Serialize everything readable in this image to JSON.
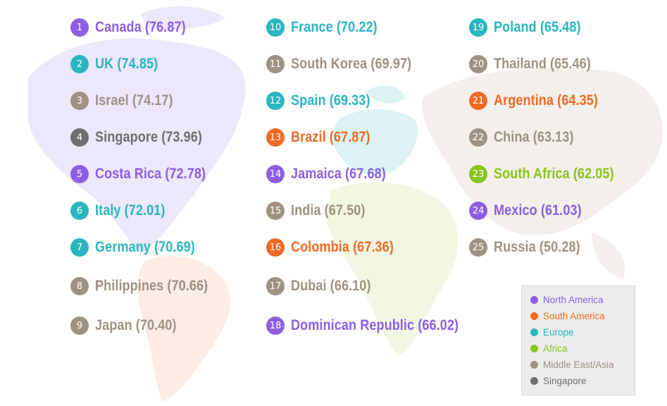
{
  "colors": {
    "north_america": "#8b5fe0",
    "south_america": "#f06a24",
    "europe": "#2bb5bf",
    "africa": "#8ac41c",
    "middle_east_asia": "#9e9283",
    "singapore": "#6f6f6f"
  },
  "legend": [
    {
      "label": "North America",
      "region": "north_america"
    },
    {
      "label": "South America",
      "region": "south_america"
    },
    {
      "label": "Europe",
      "region": "europe"
    },
    {
      "label": "Africa",
      "region": "africa"
    },
    {
      "label": "Middle East/Asia",
      "region": "middle_east_asia"
    },
    {
      "label": "Singapore",
      "region": "singapore"
    }
  ],
  "chart_data": {
    "type": "table",
    "legend_placement": "bottom-right",
    "entries": [
      {
        "rank": "1",
        "country": "Canada",
        "score": "76.87",
        "region": "north_america"
      },
      {
        "rank": "2",
        "country": "UK",
        "score": "74.85",
        "region": "europe"
      },
      {
        "rank": "3",
        "country": "Israel",
        "score": "74.17",
        "region": "middle_east_asia"
      },
      {
        "rank": "4",
        "country": "Singapore",
        "score": "73.96",
        "region": "singapore"
      },
      {
        "rank": "5",
        "country": "Costa Rica",
        "score": "72.78",
        "region": "north_america"
      },
      {
        "rank": "6",
        "country": "Italy",
        "score": "72.01",
        "region": "europe"
      },
      {
        "rank": "7",
        "country": "Germany",
        "score": "70.69",
        "region": "europe"
      },
      {
        "rank": "8",
        "country": "Philippines",
        "score": "70.66",
        "region": "middle_east_asia"
      },
      {
        "rank": "9",
        "country": "Japan",
        "score": "70.40",
        "region": "middle_east_asia"
      },
      {
        "rank": "10",
        "country": "France",
        "score": "70.22",
        "region": "europe"
      },
      {
        "rank": "11",
        "country": "South Korea",
        "score": "69.97",
        "region": "middle_east_asia"
      },
      {
        "rank": "12",
        "country": "Spain",
        "score": "69.33",
        "region": "europe"
      },
      {
        "rank": "13",
        "country": "Brazil",
        "score": "67.87",
        "region": "south_america"
      },
      {
        "rank": "14",
        "country": "Jamaica",
        "score": "67.68",
        "region": "north_america"
      },
      {
        "rank": "15",
        "country": "India",
        "score": "67.50",
        "region": "middle_east_asia"
      },
      {
        "rank": "16",
        "country": "Colombia",
        "score": "67.36",
        "region": "south_america"
      },
      {
        "rank": "17",
        "country": "Dubai",
        "score": "66.10",
        "region": "middle_east_asia"
      },
      {
        "rank": "18",
        "country": "Dominican Republic",
        "score": "66.02",
        "region": "north_america"
      },
      {
        "rank": "19",
        "country": "Poland",
        "score": "65.48",
        "region": "europe"
      },
      {
        "rank": "20",
        "country": "Thailand",
        "score": "65.46",
        "region": "middle_east_asia"
      },
      {
        "rank": "21",
        "country": "Argentina",
        "score": "64.35",
        "region": "south_america"
      },
      {
        "rank": "22",
        "country": "China",
        "score": "63.13",
        "region": "middle_east_asia"
      },
      {
        "rank": "23",
        "country": "South Africa",
        "score": "62.05",
        "region": "africa"
      },
      {
        "rank": "24",
        "country": "Mexico",
        "score": "61.03",
        "region": "north_america"
      },
      {
        "rank": "25",
        "country": "Russia",
        "score": "50.28",
        "region": "middle_east_asia"
      }
    ]
  }
}
